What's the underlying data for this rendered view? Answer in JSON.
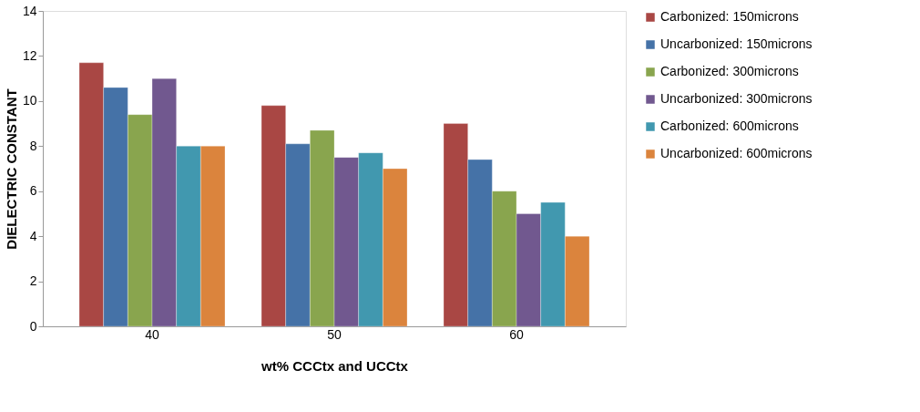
{
  "chart_data": {
    "type": "bar",
    "xlabel": "wt% CCCtx and UCCtx",
    "ylabel": "DIELECTRIC CONSTANT",
    "categories": [
      "40",
      "50",
      "60"
    ],
    "series": [
      {
        "name": "Carbonized: 150microns",
        "color": "#a94744",
        "values": [
          11.7,
          9.8,
          9.0
        ]
      },
      {
        "name": "Uncarbonized: 150microns",
        "color": "#4572a7",
        "values": [
          10.6,
          8.1,
          7.4
        ]
      },
      {
        "name": "Carbonized: 300microns",
        "color": "#89a54e",
        "values": [
          9.4,
          8.7,
          6.0
        ]
      },
      {
        "name": "Uncarbonized: 300microns",
        "color": "#71588f",
        "values": [
          11.0,
          7.5,
          5.0
        ]
      },
      {
        "name": "Carbonized: 600microns",
        "color": "#4198af",
        "values": [
          8.0,
          7.7,
          5.5
        ]
      },
      {
        "name": "Uncarbonized: 600microns",
        "color": "#db843d",
        "values": [
          8.0,
          7.0,
          4.0
        ]
      }
    ],
    "ylim": [
      0,
      14
    ],
    "yticks": [
      0,
      2,
      4,
      6,
      8,
      10,
      12,
      14
    ],
    "grid": false,
    "legend": "right"
  }
}
